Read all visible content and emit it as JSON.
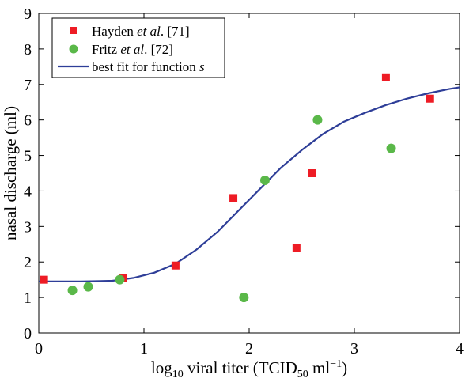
{
  "chart_data": {
    "type": "scatter",
    "xlabel_parts": {
      "log": "log",
      "log_sub": "10",
      "mid": " viral titer (TCID",
      "tcid_sub": "50",
      "unit": " ml",
      "unit_sup": "−1",
      "end": ")"
    },
    "ylabel": "nasal discharge (ml)",
    "xlim": [
      0,
      4
    ],
    "ylim": [
      0,
      9
    ],
    "xticks": [
      "0",
      "1",
      "2",
      "3",
      "4"
    ],
    "yticks": [
      "0",
      "1",
      "2",
      "3",
      "4",
      "5",
      "6",
      "7",
      "8",
      "9"
    ],
    "grid": false,
    "legend_position": "top-left",
    "series": [
      {
        "name_parts": [
          "Hayden ",
          "et al",
          ". [71]"
        ],
        "marker": "square",
        "color": "#ee1c25",
        "points": [
          [
            0.05,
            1.5
          ],
          [
            0.8,
            1.55
          ],
          [
            1.3,
            1.9
          ],
          [
            1.85,
            3.8
          ],
          [
            2.45,
            2.4
          ],
          [
            2.6,
            4.5
          ],
          [
            3.3,
            7.2
          ],
          [
            3.72,
            6.6
          ]
        ]
      },
      {
        "name_parts": [
          "Fritz ",
          "et al",
          ". [72]"
        ],
        "marker": "circle",
        "color": "#5ab849",
        "points": [
          [
            0.32,
            1.2
          ],
          [
            0.47,
            1.3
          ],
          [
            0.77,
            1.5
          ],
          [
            1.95,
            1.0
          ],
          [
            2.15,
            4.3
          ],
          [
            2.65,
            6.0
          ],
          [
            3.35,
            5.2
          ]
        ]
      },
      {
        "name_parts": [
          "best fit for function ",
          "s"
        ],
        "type": "line",
        "color": "#2e3e98",
        "points": [
          [
            0.0,
            1.45
          ],
          [
            0.4,
            1.45
          ],
          [
            0.7,
            1.47
          ],
          [
            0.9,
            1.55
          ],
          [
            1.1,
            1.7
          ],
          [
            1.3,
            1.95
          ],
          [
            1.5,
            2.35
          ],
          [
            1.7,
            2.85
          ],
          [
            1.9,
            3.45
          ],
          [
            2.1,
            4.05
          ],
          [
            2.3,
            4.65
          ],
          [
            2.5,
            5.15
          ],
          [
            2.7,
            5.6
          ],
          [
            2.9,
            5.95
          ],
          [
            3.1,
            6.2
          ],
          [
            3.3,
            6.42
          ],
          [
            3.5,
            6.6
          ],
          [
            3.7,
            6.75
          ],
          [
            3.9,
            6.87
          ],
          [
            4.0,
            6.92
          ]
        ]
      }
    ]
  }
}
